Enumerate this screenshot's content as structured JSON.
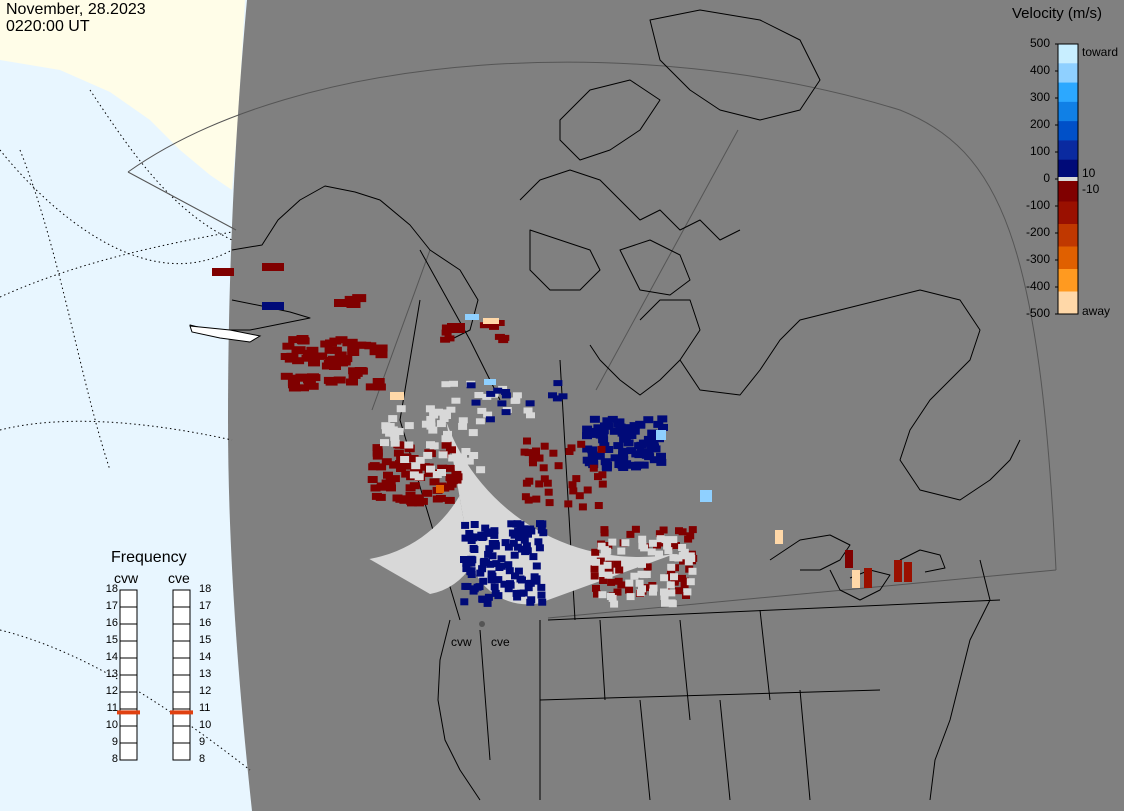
{
  "header": {
    "date": "November, 28.2023",
    "time": "0220:00 UT"
  },
  "colorbar": {
    "title": "Velocity (m/s)",
    "ticks": [
      "500",
      "400",
      "300",
      "200",
      "100",
      "0",
      "-100",
      "-200",
      "-300",
      "-400",
      "-500"
    ],
    "toward_label": "toward",
    "away_label": "away",
    "pos_threshold": "10",
    "neg_threshold": "-10",
    "colors": [
      "#c8eeff",
      "#8fd0ff",
      "#2ca8ff",
      "#1080e6",
      "#0050c8",
      "#0a2aa0",
      "#000a78",
      "#800000",
      "#9a1000",
      "#c03800",
      "#e06000",
      "#ff9a20",
      "#ffd8a8"
    ]
  },
  "frequency": {
    "title": "Frequency",
    "radars": [
      {
        "name": "cvw",
        "value": 10.8
      },
      {
        "name": "cve",
        "value": 10.8
      }
    ],
    "scale": [
      "18",
      "17",
      "16",
      "15",
      "14",
      "13",
      "12",
      "11",
      "10",
      "9",
      "8"
    ],
    "marker_color": "#e04010"
  },
  "sites": [
    {
      "label": "cvw"
    },
    {
      "label": "cve"
    }
  ],
  "map": {
    "ocean_color": "#e8f6ff",
    "ice_color": "#fffde8",
    "land_color": "#808080",
    "coast_color": "#000000",
    "low_velocity_color": "#d8d8d8"
  }
}
